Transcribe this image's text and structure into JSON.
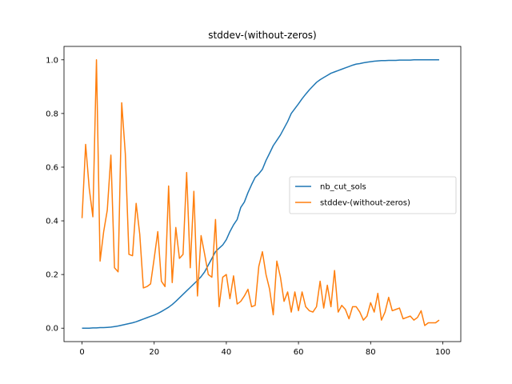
{
  "chart_data": {
    "type": "line",
    "title": "stddev-(without-zeros)",
    "xlabel": "",
    "ylabel": "",
    "xlim": [
      -5,
      105
    ],
    "ylim": [
      -0.05,
      1.05
    ],
    "x_ticks": [
      0,
      20,
      40,
      60,
      80,
      100
    ],
    "x_tick_labels": [
      "0",
      "20",
      "40",
      "60",
      "80",
      "100"
    ],
    "y_ticks": [
      0.0,
      0.2,
      0.4,
      0.6,
      0.8,
      1.0
    ],
    "y_tick_labels": [
      "0.0",
      "0.2",
      "0.4",
      "0.6",
      "0.8",
      "1.0"
    ],
    "grid": false,
    "legend_position": "center-right",
    "series": [
      {
        "name": "nb_cut_sols",
        "color": "#1f77b4",
        "x": [
          0,
          1,
          2,
          3,
          4,
          5,
          6,
          7,
          8,
          9,
          10,
          11,
          12,
          13,
          14,
          15,
          16,
          17,
          18,
          19,
          20,
          21,
          22,
          23,
          24,
          25,
          26,
          27,
          28,
          29,
          30,
          31,
          32,
          33,
          34,
          35,
          36,
          37,
          38,
          39,
          40,
          41,
          42,
          43,
          44,
          45,
          46,
          47,
          48,
          49,
          50,
          51,
          52,
          53,
          54,
          55,
          56,
          57,
          58,
          59,
          60,
          61,
          62,
          63,
          64,
          65,
          66,
          67,
          68,
          69,
          70,
          71,
          72,
          73,
          74,
          75,
          76,
          77,
          78,
          79,
          80,
          81,
          82,
          83,
          84,
          85,
          86,
          87,
          88,
          89,
          90,
          91,
          92,
          93,
          94,
          95,
          96,
          97,
          98,
          99
        ],
        "y": [
          0.0,
          0.0,
          0.0,
          0.001,
          0.001,
          0.002,
          0.002,
          0.003,
          0.004,
          0.006,
          0.008,
          0.011,
          0.014,
          0.017,
          0.02,
          0.024,
          0.029,
          0.034,
          0.039,
          0.044,
          0.049,
          0.055,
          0.062,
          0.07,
          0.078,
          0.088,
          0.1,
          0.113,
          0.126,
          0.139,
          0.152,
          0.165,
          0.178,
          0.192,
          0.21,
          0.235,
          0.26,
          0.285,
          0.298,
          0.31,
          0.33,
          0.36,
          0.385,
          0.405,
          0.45,
          0.47,
          0.505,
          0.535,
          0.562,
          0.575,
          0.592,
          0.625,
          0.652,
          0.68,
          0.7,
          0.72,
          0.745,
          0.77,
          0.8,
          0.818,
          0.836,
          0.855,
          0.872,
          0.888,
          0.902,
          0.916,
          0.926,
          0.934,
          0.942,
          0.95,
          0.955,
          0.96,
          0.965,
          0.97,
          0.975,
          0.98,
          0.984,
          0.986,
          0.989,
          0.991,
          0.993,
          0.995,
          0.996,
          0.997,
          0.997,
          0.998,
          0.998,
          0.998,
          0.999,
          0.999,
          0.999,
          0.999,
          1.0,
          1.0,
          1.0,
          1.0,
          1.0,
          1.0,
          1.0,
          1.0
        ]
      },
      {
        "name": "stddev-(without-zeros)",
        "color": "#ff7f0e",
        "x": [
          0,
          1,
          2,
          3,
          4,
          5,
          6,
          7,
          8,
          9,
          10,
          11,
          12,
          13,
          14,
          15,
          16,
          17,
          18,
          19,
          20,
          21,
          22,
          23,
          24,
          25,
          26,
          27,
          28,
          29,
          30,
          31,
          32,
          33,
          34,
          35,
          36,
          37,
          38,
          39,
          40,
          41,
          42,
          43,
          44,
          45,
          46,
          47,
          48,
          49,
          50,
          51,
          52,
          53,
          54,
          55,
          56,
          57,
          58,
          59,
          60,
          61,
          62,
          63,
          64,
          65,
          66,
          67,
          68,
          69,
          70,
          71,
          72,
          73,
          74,
          75,
          76,
          77,
          78,
          79,
          80,
          81,
          82,
          83,
          84,
          85,
          86,
          87,
          88,
          89,
          90,
          91,
          92,
          93,
          94,
          95,
          96,
          97,
          98,
          99
        ],
        "y": [
          0.41,
          0.685,
          0.52,
          0.415,
          1.0,
          0.25,
          0.36,
          0.44,
          0.645,
          0.225,
          0.21,
          0.84,
          0.65,
          0.275,
          0.27,
          0.465,
          0.35,
          0.15,
          0.155,
          0.165,
          0.26,
          0.36,
          0.175,
          0.155,
          0.53,
          0.17,
          0.375,
          0.26,
          0.275,
          0.58,
          0.225,
          0.51,
          0.12,
          0.345,
          0.275,
          0.2,
          0.19,
          0.405,
          0.08,
          0.19,
          0.2,
          0.11,
          0.195,
          0.09,
          0.1,
          0.12,
          0.145,
          0.08,
          0.085,
          0.23,
          0.285,
          0.2,
          0.145,
          0.05,
          0.25,
          0.19,
          0.1,
          0.135,
          0.06,
          0.135,
          0.065,
          0.135,
          0.08,
          0.065,
          0.06,
          0.08,
          0.175,
          0.075,
          0.16,
          0.08,
          0.215,
          0.06,
          0.085,
          0.07,
          0.035,
          0.08,
          0.08,
          0.06,
          0.03,
          0.045,
          0.095,
          0.06,
          0.13,
          0.03,
          0.06,
          0.115,
          0.065,
          0.07,
          0.075,
          0.035,
          0.04,
          0.045,
          0.03,
          0.04,
          0.065,
          0.01,
          0.02,
          0.02,
          0.02,
          0.03
        ]
      }
    ]
  }
}
